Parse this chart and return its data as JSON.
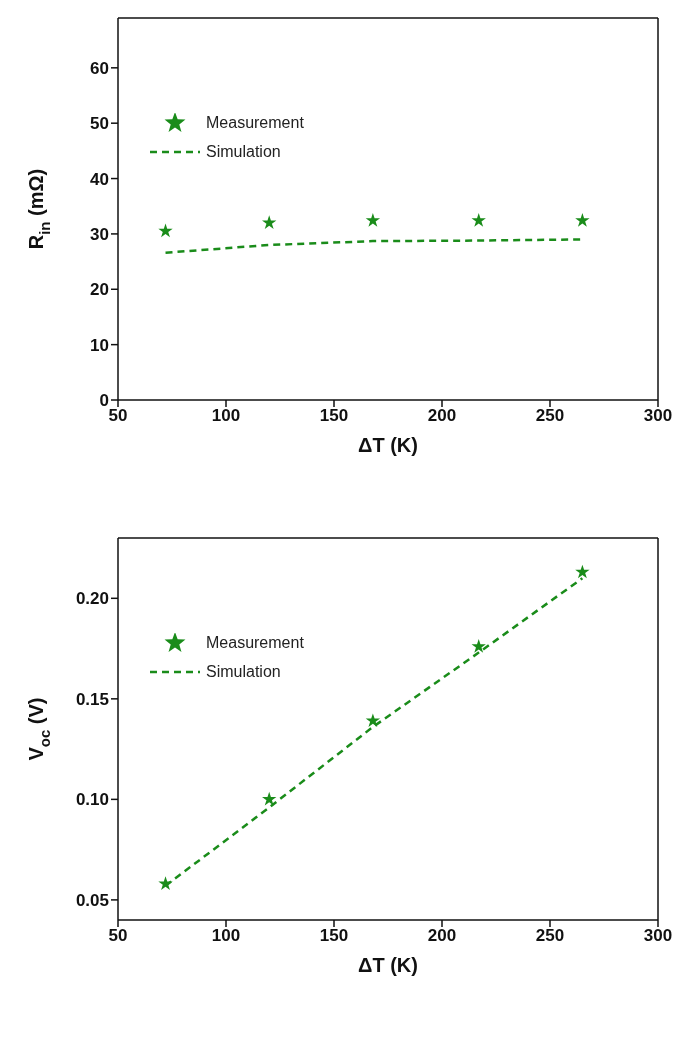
{
  "chart_data": [
    {
      "type": "scatter",
      "xlabel": "ΔT (K)",
      "ylabel": "R$_{in}$ (mΩ)",
      "x": [
        72,
        120,
        168,
        217,
        265
      ],
      "xlim": [
        50,
        300
      ],
      "xticks": [
        50,
        100,
        150,
        200,
        250,
        300
      ],
      "ylim": [
        0,
        69
      ],
      "yticks": [
        0,
        10,
        20,
        30,
        40,
        50,
        60
      ],
      "legend": "top left",
      "grid": false,
      "series": [
        {
          "name": "Measurement",
          "marker": "star",
          "color": "#1a8c1a",
          "values": [
            30.5,
            32.0,
            32.4,
            32.4,
            32.4
          ]
        },
        {
          "name": "Simulation",
          "type": "line",
          "line_style": "dashed",
          "marker": "none",
          "color": "#1a8c1a",
          "values": [
            26.6,
            28.0,
            28.7,
            28.8,
            29.0
          ]
        }
      ]
    },
    {
      "type": "scatter",
      "xlabel": "ΔT (K)",
      "ylabel": "V$_{oc}$ (V)",
      "x": [
        72,
        120,
        168,
        217,
        265
      ],
      "xlim": [
        50,
        300
      ],
      "xticks": [
        50,
        100,
        150,
        200,
        250,
        300
      ],
      "ylim": [
        0.04,
        0.23
      ],
      "yticks": [
        {
          "value": 0.05,
          "label": "0.05"
        },
        {
          "value": 0.1,
          "label": "0.10"
        },
        {
          "value": 0.15,
          "label": "0.15"
        },
        {
          "value": 0.2,
          "label": "0.20"
        }
      ],
      "legend": "top left",
      "grid": false,
      "series": [
        {
          "name": "Measurement",
          "marker": "star",
          "color": "#1a8c1a",
          "values": [
            0.058,
            0.1,
            0.139,
            0.176,
            0.213
          ]
        },
        {
          "name": "Simulation",
          "type": "line",
          "line_style": "dashed",
          "marker": "none",
          "color": "#1a8c1a",
          "values": [
            0.057,
            0.096,
            0.136,
            0.173,
            0.21
          ]
        }
      ]
    }
  ]
}
